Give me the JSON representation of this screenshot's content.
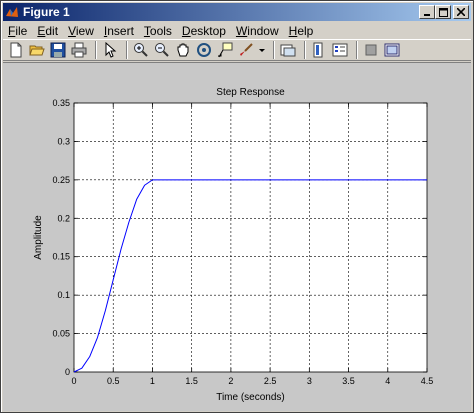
{
  "window": {
    "title": "Figure 1",
    "min_icon": "minimize-icon",
    "max_icon": "maximize-icon",
    "close_icon": "close-icon"
  },
  "menu": [
    {
      "label": "File",
      "u": "F",
      "rest": "ile"
    },
    {
      "label": "Edit",
      "u": "E",
      "rest": "dit"
    },
    {
      "label": "View",
      "u": "V",
      "rest": "iew"
    },
    {
      "label": "Insert",
      "u": "I",
      "rest": "nsert"
    },
    {
      "label": "Tools",
      "u": "T",
      "rest": "ools"
    },
    {
      "label": "Desktop",
      "u": "D",
      "rest": "esktop"
    },
    {
      "label": "Window",
      "u": "W",
      "rest": "indow"
    },
    {
      "label": "Help",
      "u": "H",
      "rest": "elp"
    }
  ],
  "toolbar": [
    "new-figure-icon",
    "open-file-icon",
    "save-icon",
    "print-icon",
    "pointer-icon",
    "zoom-in-icon",
    "zoom-out-icon",
    "pan-icon",
    "rotate-3d-icon",
    "data-cursor-icon",
    "brush-icon",
    "brush-dropdown-icon",
    "link-plot-icon",
    "colorbar-icon",
    "legend-icon",
    "hide-plot-tools-icon",
    "show-plot-tools-icon"
  ],
  "colors": {
    "line": "#0000ff",
    "axes_bg": "#ffffff",
    "figure_bg": "#c8c8c8"
  },
  "chart_data": {
    "type": "line",
    "title": "Step Response",
    "xlabel": "Time (seconds)",
    "ylabel": "Amplitude",
    "xlim": [
      0,
      4.5
    ],
    "ylim": [
      0,
      0.35
    ],
    "grid": true,
    "xticks": [
      "0",
      "0.5",
      "1",
      "1.5",
      "2",
      "2.5",
      "3",
      "3.5",
      "4",
      "4.5"
    ],
    "yticks": [
      "0",
      "0.05",
      "0.1",
      "0.15",
      "0.2",
      "0.25",
      "0.3",
      "0.35"
    ],
    "series": [
      {
        "x": [
          0,
          0.1,
          0.2,
          0.3,
          0.4,
          0.5,
          0.6,
          0.7,
          0.8,
          0.9,
          1.0,
          1.1,
          1.5,
          2,
          2.5,
          3,
          3.5,
          4,
          4.5
        ],
        "y": [
          0,
          0.005,
          0.02,
          0.045,
          0.08,
          0.12,
          0.16,
          0.195,
          0.225,
          0.243,
          0.25,
          0.25,
          0.25,
          0.25,
          0.25,
          0.25,
          0.25,
          0.25,
          0.25
        ]
      }
    ]
  }
}
